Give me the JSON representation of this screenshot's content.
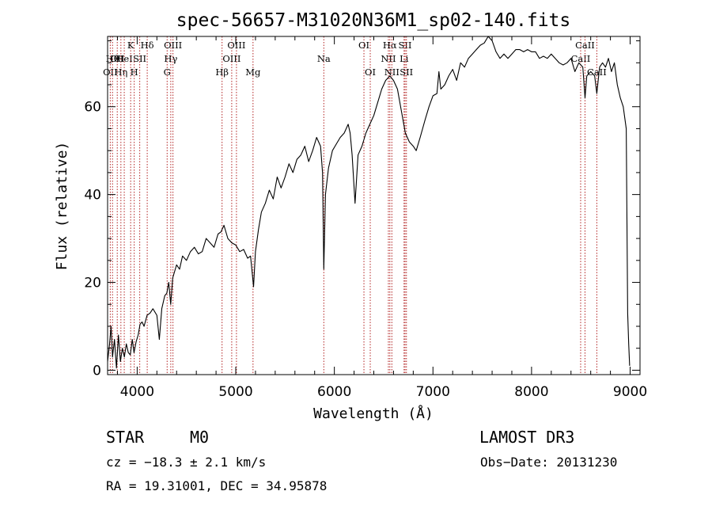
{
  "chart_data": {
    "type": "line",
    "title": "spec-56657-M31020N36M1_sp02-140.fits",
    "xlabel": "Wavelength (Å)",
    "ylabel": "Flux (relative)",
    "xlim": [
      3700,
      9100
    ],
    "ylim": [
      -1,
      76
    ],
    "xticks": [
      4000,
      5000,
      6000,
      7000,
      8000,
      9000
    ],
    "yticks": [
      0,
      20,
      40,
      60
    ],
    "grid": false,
    "series": [
      {
        "values": [
          [
            3700,
            2
          ],
          [
            3720,
            6
          ],
          [
            3735,
            10
          ],
          [
            3750,
            3
          ],
          [
            3770,
            7
          ],
          [
            3790,
            0.5
          ],
          [
            3810,
            8
          ],
          [
            3830,
            2
          ],
          [
            3850,
            5
          ],
          [
            3870,
            3
          ],
          [
            3890,
            6
          ],
          [
            3910,
            4
          ],
          [
            3930,
            3.5
          ],
          [
            3950,
            7
          ],
          [
            3968,
            4
          ],
          [
            3990,
            6.5
          ],
          [
            4010,
            8
          ],
          [
            4030,
            10.5
          ],
          [
            4050,
            11
          ],
          [
            4070,
            10
          ],
          [
            4100,
            12.5
          ],
          [
            4130,
            13
          ],
          [
            4160,
            14
          ],
          [
            4200,
            12.5
          ],
          [
            4225,
            7
          ],
          [
            4250,
            14
          ],
          [
            4280,
            17
          ],
          [
            4300,
            17.5
          ],
          [
            4320,
            20
          ],
          [
            4340,
            15
          ],
          [
            4360,
            21
          ],
          [
            4400,
            24
          ],
          [
            4430,
            23
          ],
          [
            4460,
            26
          ],
          [
            4500,
            25
          ],
          [
            4540,
            27
          ],
          [
            4580,
            28
          ],
          [
            4620,
            26.5
          ],
          [
            4660,
            27
          ],
          [
            4700,
            30
          ],
          [
            4740,
            29
          ],
          [
            4780,
            28
          ],
          [
            4820,
            31
          ],
          [
            4850,
            31.5
          ],
          [
            4880,
            33
          ],
          [
            4920,
            30
          ],
          [
            4960,
            29
          ],
          [
            5000,
            28.5
          ],
          [
            5040,
            27
          ],
          [
            5080,
            27.5
          ],
          [
            5120,
            25.5
          ],
          [
            5150,
            26
          ],
          [
            5180,
            19
          ],
          [
            5200,
            27
          ],
          [
            5230,
            32
          ],
          [
            5260,
            36
          ],
          [
            5300,
            38
          ],
          [
            5340,
            41
          ],
          [
            5380,
            39
          ],
          [
            5420,
            44
          ],
          [
            5460,
            41.5
          ],
          [
            5500,
            44
          ],
          [
            5540,
            47
          ],
          [
            5580,
            45
          ],
          [
            5620,
            48
          ],
          [
            5660,
            49
          ],
          [
            5700,
            51
          ],
          [
            5740,
            47.5
          ],
          [
            5780,
            50
          ],
          [
            5820,
            53
          ],
          [
            5860,
            51
          ],
          [
            5880,
            45
          ],
          [
            5893,
            23
          ],
          [
            5910,
            40
          ],
          [
            5940,
            46
          ],
          [
            5980,
            50
          ],
          [
            6020,
            51.5
          ],
          [
            6060,
            53
          ],
          [
            6100,
            54
          ],
          [
            6140,
            56
          ],
          [
            6160,
            54
          ],
          [
            6180,
            49
          ],
          [
            6210,
            38
          ],
          [
            6240,
            49
          ],
          [
            6280,
            51
          ],
          [
            6320,
            54
          ],
          [
            6360,
            56
          ],
          [
            6400,
            58
          ],
          [
            6440,
            61
          ],
          [
            6480,
            64
          ],
          [
            6520,
            66
          ],
          [
            6563,
            67
          ],
          [
            6600,
            66
          ],
          [
            6640,
            64
          ],
          [
            6680,
            59
          ],
          [
            6720,
            54
          ],
          [
            6760,
            52
          ],
          [
            6800,
            51
          ],
          [
            6830,
            50
          ],
          [
            6870,
            53
          ],
          [
            6920,
            57
          ],
          [
            6960,
            60
          ],
          [
            7000,
            62.5
          ],
          [
            7040,
            63
          ],
          [
            7060,
            68
          ],
          [
            7080,
            64
          ],
          [
            7120,
            65
          ],
          [
            7160,
            67
          ],
          [
            7200,
            68.5
          ],
          [
            7240,
            66
          ],
          [
            7280,
            70
          ],
          [
            7320,
            69
          ],
          [
            7360,
            71
          ],
          [
            7400,
            72
          ],
          [
            7440,
            73
          ],
          [
            7480,
            74
          ],
          [
            7520,
            74.5
          ],
          [
            7560,
            76
          ],
          [
            7600,
            75
          ],
          [
            7640,
            72.5
          ],
          [
            7680,
            71
          ],
          [
            7720,
            72
          ],
          [
            7760,
            71
          ],
          [
            7800,
            72
          ],
          [
            7840,
            73
          ],
          [
            7880,
            73
          ],
          [
            7920,
            72.5
          ],
          [
            7960,
            73
          ],
          [
            8000,
            72.5
          ],
          [
            8040,
            72.5
          ],
          [
            8080,
            71
          ],
          [
            8120,
            71.5
          ],
          [
            8160,
            71
          ],
          [
            8200,
            72
          ],
          [
            8240,
            71
          ],
          [
            8280,
            70
          ],
          [
            8320,
            69.5
          ],
          [
            8360,
            70
          ],
          [
            8400,
            71
          ],
          [
            8440,
            68
          ],
          [
            8480,
            70
          ],
          [
            8520,
            69
          ],
          [
            8542,
            62
          ],
          [
            8560,
            67
          ],
          [
            8600,
            68
          ],
          [
            8640,
            67
          ],
          [
            8662,
            63
          ],
          [
            8690,
            69
          ],
          [
            8720,
            70
          ],
          [
            8750,
            69
          ],
          [
            8780,
            71
          ],
          [
            8810,
            68
          ],
          [
            8840,
            70
          ],
          [
            8870,
            65
          ],
          [
            8900,
            62
          ],
          [
            8930,
            60
          ],
          [
            8960,
            55
          ],
          [
            8975,
            13
          ],
          [
            8985,
            6
          ],
          [
            8995,
            1
          ]
        ]
      }
    ],
    "lines": [
      {
        "wl": 3727,
        "label": "OII",
        "row": 2
      },
      {
        "wl": 3750,
        "label": "Hθ",
        "row": 1
      },
      {
        "wl": 3798,
        "label": "OII",
        "row": 1
      },
      {
        "wl": 3835,
        "label": "Hη",
        "row": 2
      },
      {
        "wl": 3869,
        "label": "HeI",
        "row": 1
      },
      {
        "wl": 3934,
        "label": "K",
        "row": 0
      },
      {
        "wl": 3970,
        "label": "H",
        "row": 2
      },
      {
        "wl": 4026,
        "label": "SII",
        "row": 1
      },
      {
        "wl": 4102,
        "label": "Hδ",
        "row": 0
      },
      {
        "wl": 4304,
        "label": "G",
        "row": 2
      },
      {
        "wl": 4341,
        "label": "Hγ",
        "row": 1
      },
      {
        "wl": 4363,
        "label": "OIII",
        "row": 0
      },
      {
        "wl": 4861,
        "label": "Hβ",
        "row": 2
      },
      {
        "wl": 4959,
        "label": "OIII",
        "row": 1
      },
      {
        "wl": 5007,
        "label": "OIII",
        "row": 0
      },
      {
        "wl": 5175,
        "label": "Mg",
        "row": 2
      },
      {
        "wl": 5893,
        "label": "Na",
        "row": 1
      },
      {
        "wl": 6300,
        "label": "OI",
        "row": 0
      },
      {
        "wl": 6364,
        "label": "OI",
        "row": 2
      },
      {
        "wl": 6548,
        "label": "NII",
        "row": 1
      },
      {
        "wl": 6563,
        "label": "Hα",
        "row": 0
      },
      {
        "wl": 6583,
        "label": "NII",
        "row": 2
      },
      {
        "wl": 6707,
        "label": "Li",
        "row": 1
      },
      {
        "wl": 6717,
        "label": "SII",
        "row": 0
      },
      {
        "wl": 6731,
        "label": "SII",
        "row": 2
      },
      {
        "wl": 8498,
        "label": "CaII",
        "row": 1
      },
      {
        "wl": 8542,
        "label": "CaII",
        "row": 0
      },
      {
        "wl": 8662,
        "label": "CaII",
        "row": 2
      }
    ],
    "line_color": "#b22222"
  },
  "info": {
    "class": "STAR",
    "subclass": "M0",
    "survey": "LAMOST DR3",
    "cz": "cz = −18.3 ± 2.1 km/s",
    "obs_date": "Obs−Date: 20131230",
    "coords": "RA =  19.31001, DEC =  34.95878"
  }
}
